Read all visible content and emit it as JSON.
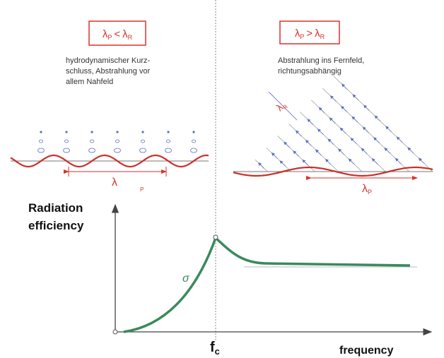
{
  "left_panel": {
    "condition": {
      "symbol_1": "λ",
      "sub_1": "P",
      "operator": "<",
      "symbol_2": "λ",
      "sub_2": "R"
    },
    "description": [
      "hydrodynamischer Kurz-",
      "schluss, Abstrahlung vor",
      "allem Nahfeld"
    ],
    "wavelength_label": {
      "symbol": "λ",
      "sub": "P"
    }
  },
  "right_panel": {
    "condition": {
      "symbol_1": "λ",
      "sub_1": "P",
      "operator": ">",
      "symbol_2": "λ",
      "sub_2": "R"
    },
    "description": [
      "Abstrahlung ins Fernfeld,",
      "richtungsabhängig"
    ],
    "radiation_wavelength_label": {
      "symbol": "λ",
      "sub": "R"
    },
    "wavelength_label": {
      "symbol": "λ",
      "sub": "P"
    }
  },
  "graph": {
    "y_axis_label": [
      "Radiation",
      "efficiency"
    ],
    "curve_label": "σ",
    "critical_frequency": {
      "symbol": "f",
      "sub": "c"
    },
    "x_axis_label": "frequency"
  }
}
